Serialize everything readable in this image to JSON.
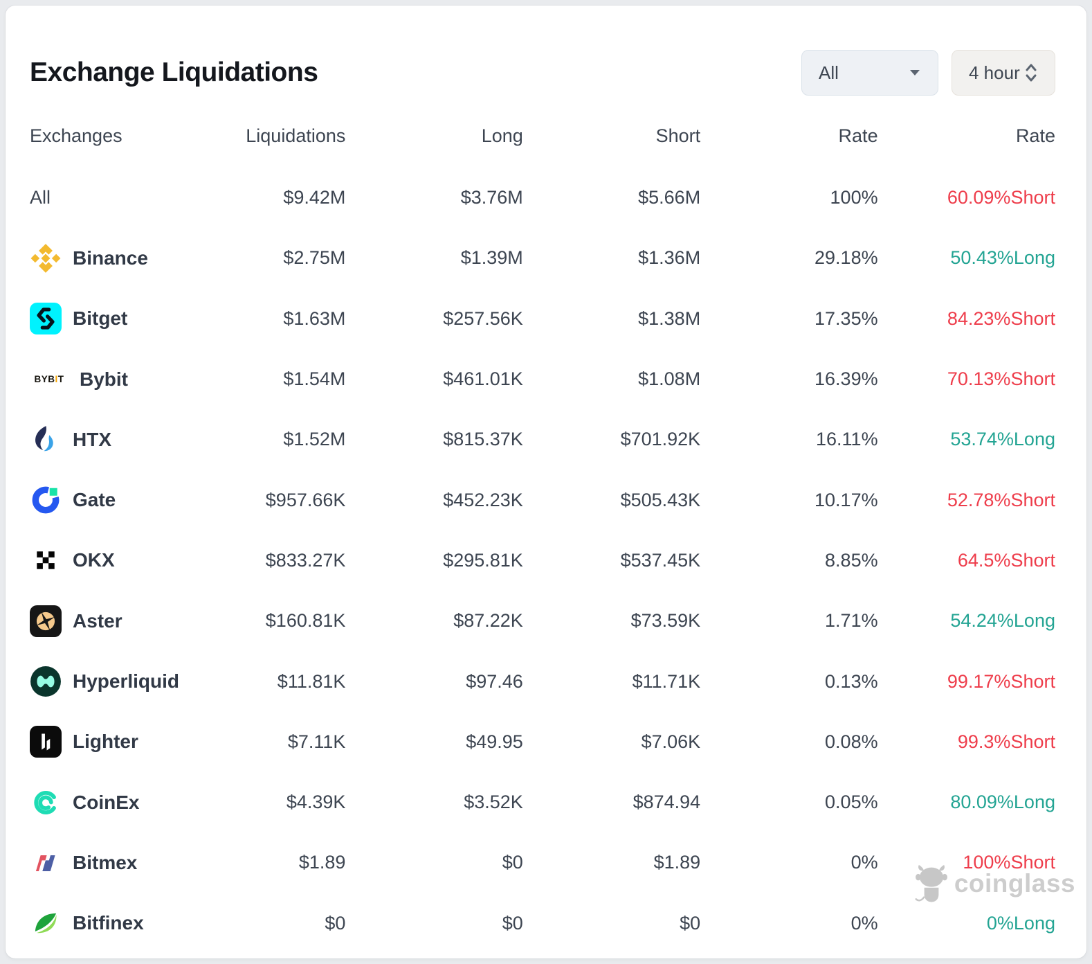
{
  "header": {
    "title": "Exchange Liquidations",
    "filter_selected": "All",
    "interval_selected": "4 hour"
  },
  "table": {
    "columns": [
      "Exchanges",
      "Liquidations",
      "Long",
      "Short",
      "Rate",
      "Rate"
    ],
    "rows": [
      {
        "name": "All",
        "icon": null,
        "liquidations": "$9.42M",
        "long": "$3.76M",
        "short": "$5.66M",
        "rate": "100%",
        "bias_rate": "60.09%",
        "bias_side": "Short"
      },
      {
        "name": "Binance",
        "icon": "binance-icon",
        "liquidations": "$2.75M",
        "long": "$1.39M",
        "short": "$1.36M",
        "rate": "29.18%",
        "bias_rate": "50.43%",
        "bias_side": "Long"
      },
      {
        "name": "Bitget",
        "icon": "bitget-icon",
        "liquidations": "$1.63M",
        "long": "$257.56K",
        "short": "$1.38M",
        "rate": "17.35%",
        "bias_rate": "84.23%",
        "bias_side": "Short"
      },
      {
        "name": "Bybit",
        "icon": "bybit-logo",
        "liquidations": "$1.54M",
        "long": "$461.01K",
        "short": "$1.08M",
        "rate": "16.39%",
        "bias_rate": "70.13%",
        "bias_side": "Short"
      },
      {
        "name": "HTX",
        "icon": "htx-icon",
        "liquidations": "$1.52M",
        "long": "$815.37K",
        "short": "$701.92K",
        "rate": "16.11%",
        "bias_rate": "53.74%",
        "bias_side": "Long"
      },
      {
        "name": "Gate",
        "icon": "gate-icon",
        "liquidations": "$957.66K",
        "long": "$452.23K",
        "short": "$505.43K",
        "rate": "10.17%",
        "bias_rate": "52.78%",
        "bias_side": "Short"
      },
      {
        "name": "OKX",
        "icon": "okx-icon",
        "liquidations": "$833.27K",
        "long": "$295.81K",
        "short": "$537.45K",
        "rate": "8.85%",
        "bias_rate": "64.5%",
        "bias_side": "Short"
      },
      {
        "name": "Aster",
        "icon": "aster-icon",
        "liquidations": "$160.81K",
        "long": "$87.22K",
        "short": "$73.59K",
        "rate": "1.71%",
        "bias_rate": "54.24%",
        "bias_side": "Long"
      },
      {
        "name": "Hyperliquid",
        "icon": "hyperliquid-icon",
        "liquidations": "$11.81K",
        "long": "$97.46",
        "short": "$11.71K",
        "rate": "0.13%",
        "bias_rate": "99.17%",
        "bias_side": "Short"
      },
      {
        "name": "Lighter",
        "icon": "lighter-icon",
        "liquidations": "$7.11K",
        "long": "$49.95",
        "short": "$7.06K",
        "rate": "0.08%",
        "bias_rate": "99.3%",
        "bias_side": "Short"
      },
      {
        "name": "CoinEx",
        "icon": "coinex-icon",
        "liquidations": "$4.39K",
        "long": "$3.52K",
        "short": "$874.94",
        "rate": "0.05%",
        "bias_rate": "80.09%",
        "bias_side": "Long"
      },
      {
        "name": "Bitmex",
        "icon": "bitmex-icon",
        "liquidations": "$1.89",
        "long": "$0",
        "short": "$1.89",
        "rate": "0%",
        "bias_rate": "100%",
        "bias_side": "Short"
      },
      {
        "name": "Bitfinex",
        "icon": "bitfinex-icon",
        "liquidations": "$0",
        "long": "$0",
        "short": "$0",
        "rate": "0%",
        "bias_rate": "0%",
        "bias_side": "Long"
      }
    ]
  },
  "watermark": {
    "label": "coinglass"
  },
  "colors": {
    "short": "#ee3d4b",
    "long": "#23a493",
    "binance_gold": "#f3ba2f",
    "bitget_cyan": "#00f2fe",
    "bybit_orange": "#f7a600"
  }
}
